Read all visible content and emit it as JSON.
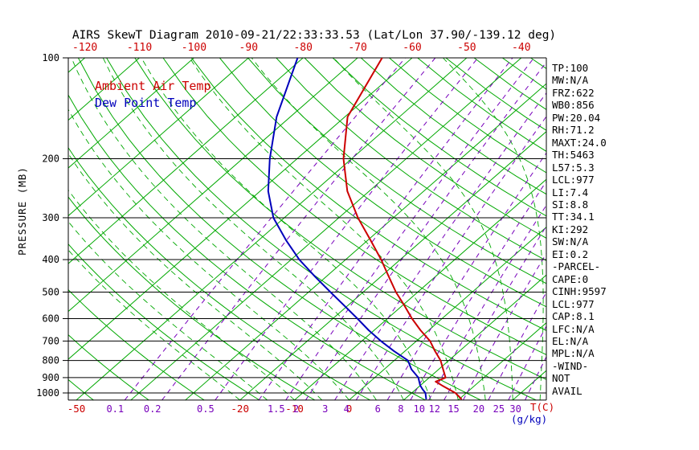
{
  "title": "AIRS SkewT Diagram 2010-09-21/22:33:33.53 (Lat/Lon 37.90/-139.12 deg)",
  "legend": {
    "temp_label": "Ambient Air Temp",
    "dewpoint_label": "Dew Point Temp"
  },
  "axes": {
    "y_label": "PRESSURE (MB)",
    "pressure_ticks": [
      100,
      200,
      300,
      400,
      500,
      600,
      700,
      800,
      900,
      1000
    ],
    "top_temp_ticks": [
      -120,
      -110,
      -100,
      -90,
      -80,
      -70,
      -60,
      -50,
      -40
    ],
    "bottom_temp_ticks": [
      -50,
      -20,
      -10,
      0
    ],
    "mixing_ratio_labels": [
      0.1,
      0.2,
      0.5,
      1.5,
      2,
      3,
      4,
      6,
      8,
      10,
      12,
      15,
      20,
      25,
      30
    ],
    "mixing_ratio_lines": [
      0.1,
      0.2,
      0.5,
      1,
      1.5,
      2,
      3,
      4,
      6,
      8,
      10,
      12,
      15,
      20,
      25,
      30
    ],
    "temp_unit": "T(C)",
    "mixing_unit": "(g/kg)"
  },
  "colors": {
    "temperature": "#cc0000",
    "dewpoint": "#0000bb",
    "isotherm_adiabat": "#00a800",
    "mixing_ratio": "#7700bb",
    "axis": "#000000"
  },
  "stats_panel": [
    "TP:100",
    "MW:N/A",
    "FRZ:622",
    "WB0:856",
    "PW:20.04",
    "RH:71.2",
    "MAXT:24.0",
    "TH:5463",
    "L57:5.3",
    "LCL:977",
    "LI:7.4",
    "SI:8.8",
    "TT:34.1",
    "KI:292",
    "SW:N/A",
    "EI:0.2",
    "-PARCEL-",
    "CAPE:0",
    "CINH:9597",
    "LCL:977",
    "CAP:8.1",
    "LFC:N/A",
    "EL:N/A",
    "MPL:N/A",
    "-WIND-",
    "NOT",
    "AVAIL"
  ],
  "chart_data": {
    "type": "line",
    "diagram": "skew-t-log-p",
    "title": "AIRS SkewT Diagram 2010-09-21/22:33:33.53 (Lat/Lon 37.90/-139.12 deg)",
    "y_axis": {
      "label": "PRESSURE (MB)",
      "scale": "log",
      "range_mb": [
        100,
        1050
      ],
      "ticks": [
        100,
        200,
        300,
        400,
        500,
        600,
        700,
        800,
        900,
        1000
      ]
    },
    "x_axis": {
      "label": "T(C)",
      "skew": true,
      "top_ticks_at_100mb": [
        -120,
        -110,
        -100,
        -90,
        -80,
        -70,
        -60,
        -50,
        -40
      ],
      "bottom_ticks_at_1050mb": [
        -50,
        -20,
        -10,
        0
      ]
    },
    "pressure_mb": [
      1045,
      1000,
      975,
      950,
      925,
      900,
      850,
      800,
      750,
      700,
      650,
      600,
      550,
      500,
      450,
      400,
      350,
      300,
      250,
      200,
      150,
      100
    ],
    "series": [
      {
        "name": "Ambient Air Temp",
        "unit": "C",
        "values": [
          20.5,
          18.0,
          16.0,
          14.0,
          12.0,
          13.0,
          10.8,
          8.5,
          5.5,
          2.5,
          -1.5,
          -5.5,
          -9.5,
          -14.0,
          -18.5,
          -23.5,
          -29.5,
          -36.5,
          -44.0,
          -51.5,
          -59.5,
          -65.5
        ]
      },
      {
        "name": "Dew Point Temp",
        "unit": "C",
        "values": [
          14.0,
          12.5,
          11.2,
          10.0,
          9.0,
          8.0,
          5.0,
          2.5,
          -2.0,
          -6.5,
          -11.0,
          -15.5,
          -20.5,
          -26.0,
          -32.0,
          -38.5,
          -45.0,
          -52.0,
          -58.5,
          -65.0,
          -72.5,
          -81.0
        ]
      }
    ]
  }
}
